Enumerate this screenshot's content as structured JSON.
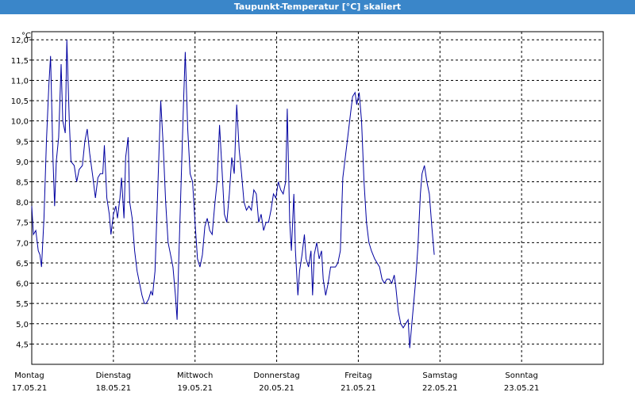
{
  "window": {
    "title": "Taupunkt-Temperatur [°C] skaliert"
  },
  "chart_data": {
    "type": "line",
    "title": "Taupunkt-Temperatur [°C] skaliert",
    "ylabel": "°C",
    "xlabel": "",
    "ylim": [
      4.0,
      12.2
    ],
    "xlim": [
      0,
      7
    ],
    "y_ticks": [
      "12,0",
      "11,5",
      "11,0",
      "10,5",
      "10,0",
      "9,5",
      "9,0",
      "8,5",
      "8,0",
      "7,5",
      "7,0",
      "6,5",
      "6,0",
      "5,5",
      "5,0",
      "4,5"
    ],
    "y_tick_values": [
      12.0,
      11.5,
      11.0,
      10.5,
      10.0,
      9.5,
      9.0,
      8.5,
      8.0,
      7.5,
      7.0,
      6.5,
      6.0,
      5.5,
      5.0,
      4.5
    ],
    "x_tick_labels": [
      {
        "day": "Montag",
        "date": "17.05.21"
      },
      {
        "day": "Dienstag",
        "date": "18.05.21"
      },
      {
        "day": "Mittwoch",
        "date": "19.05.21"
      },
      {
        "day": "Donnerstag",
        "date": "20.05.21"
      },
      {
        "day": "Freitag",
        "date": "21.05.21"
      },
      {
        "day": "Samstag",
        "date": "22.05.21"
      },
      {
        "day": "Sonntag",
        "date": "23.05.21"
      }
    ],
    "grid": true,
    "series": [
      {
        "color": "#0000a0",
        "points": [
          [
            0.0,
            7.9
          ],
          [
            0.02,
            7.2
          ],
          [
            0.05,
            7.3
          ],
          [
            0.08,
            6.8
          ],
          [
            0.1,
            6.7
          ],
          [
            0.12,
            6.4
          ],
          [
            0.15,
            7.6
          ],
          [
            0.18,
            9.5
          ],
          [
            0.21,
            10.9
          ],
          [
            0.23,
            11.6
          ],
          [
            0.26,
            9.1
          ],
          [
            0.28,
            7.9
          ],
          [
            0.3,
            9.0
          ],
          [
            0.33,
            9.6
          ],
          [
            0.36,
            11.4
          ],
          [
            0.38,
            10.0
          ],
          [
            0.41,
            9.7
          ],
          [
            0.43,
            12.0
          ],
          [
            0.46,
            10.0
          ],
          [
            0.48,
            9.0
          ],
          [
            0.52,
            8.9
          ],
          [
            0.55,
            8.5
          ],
          [
            0.58,
            8.8
          ],
          [
            0.62,
            8.9
          ],
          [
            0.65,
            9.5
          ],
          [
            0.68,
            9.8
          ],
          [
            0.71,
            9.2
          ],
          [
            0.75,
            8.6
          ],
          [
            0.78,
            8.1
          ],
          [
            0.81,
            8.6
          ],
          [
            0.84,
            8.7
          ],
          [
            0.87,
            8.7
          ],
          [
            0.89,
            9.4
          ],
          [
            0.92,
            8.1
          ],
          [
            0.95,
            7.7
          ],
          [
            0.97,
            7.2
          ],
          [
            1.0,
            7.7
          ],
          [
            1.03,
            7.9
          ],
          [
            1.05,
            7.6
          ],
          [
            1.08,
            8.1
          ],
          [
            1.1,
            8.6
          ],
          [
            1.13,
            7.6
          ],
          [
            1.15,
            9.1
          ],
          [
            1.18,
            9.6
          ],
          [
            1.2,
            8.0
          ],
          [
            1.23,
            7.6
          ],
          [
            1.26,
            6.8
          ],
          [
            1.29,
            6.3
          ],
          [
            1.32,
            6.0
          ],
          [
            1.35,
            5.7
          ],
          [
            1.38,
            5.5
          ],
          [
            1.4,
            5.5
          ],
          [
            1.43,
            5.6
          ],
          [
            1.46,
            5.8
          ],
          [
            1.48,
            5.7
          ],
          [
            1.51,
            6.3
          ],
          [
            1.55,
            8.7
          ],
          [
            1.58,
            10.5
          ],
          [
            1.61,
            9.4
          ],
          [
            1.64,
            8.0
          ],
          [
            1.67,
            7.0
          ],
          [
            1.7,
            6.7
          ],
          [
            1.73,
            6.4
          ],
          [
            1.76,
            5.7
          ],
          [
            1.78,
            5.1
          ],
          [
            1.8,
            6.5
          ],
          [
            1.83,
            8.5
          ],
          [
            1.86,
            10.5
          ],
          [
            1.88,
            11.7
          ],
          [
            1.91,
            9.8
          ],
          [
            1.94,
            8.7
          ],
          [
            1.97,
            8.5
          ],
          [
            2.0,
            7.5
          ],
          [
            2.03,
            6.6
          ],
          [
            2.06,
            6.4
          ],
          [
            2.09,
            6.7
          ],
          [
            2.12,
            7.4
          ],
          [
            2.15,
            7.6
          ],
          [
            2.18,
            7.3
          ],
          [
            2.21,
            7.2
          ],
          [
            2.24,
            7.9
          ],
          [
            2.27,
            8.5
          ],
          [
            2.3,
            9.9
          ],
          [
            2.33,
            8.8
          ],
          [
            2.36,
            7.7
          ],
          [
            2.39,
            7.5
          ],
          [
            2.42,
            8.2
          ],
          [
            2.45,
            9.1
          ],
          [
            2.48,
            8.7
          ],
          [
            2.51,
            10.4
          ],
          [
            2.54,
            9.3
          ],
          [
            2.57,
            8.7
          ],
          [
            2.6,
            8.0
          ],
          [
            2.63,
            7.8
          ],
          [
            2.66,
            7.9
          ],
          [
            2.69,
            7.8
          ],
          [
            2.72,
            8.3
          ],
          [
            2.75,
            8.2
          ],
          [
            2.78,
            7.5
          ],
          [
            2.81,
            7.7
          ],
          [
            2.84,
            7.3
          ],
          [
            2.87,
            7.5
          ],
          [
            2.9,
            7.5
          ],
          [
            2.93,
            7.8
          ],
          [
            2.96,
            8.2
          ],
          [
            2.99,
            8.1
          ],
          [
            3.02,
            8.5
          ],
          [
            3.05,
            8.3
          ],
          [
            3.08,
            8.2
          ],
          [
            3.11,
            8.5
          ],
          [
            3.13,
            10.3
          ],
          [
            3.16,
            7.5
          ],
          [
            3.18,
            6.8
          ],
          [
            3.21,
            8.2
          ],
          [
            3.23,
            6.8
          ],
          [
            3.26,
            5.7
          ],
          [
            3.28,
            6.3
          ],
          [
            3.31,
            6.7
          ],
          [
            3.34,
            7.2
          ],
          [
            3.36,
            6.6
          ],
          [
            3.39,
            6.4
          ],
          [
            3.42,
            6.8
          ],
          [
            3.44,
            5.7
          ],
          [
            3.46,
            6.7
          ],
          [
            3.49,
            7.0
          ],
          [
            3.52,
            6.6
          ],
          [
            3.55,
            6.8
          ],
          [
            3.57,
            6.1
          ],
          [
            3.6,
            5.7
          ],
          [
            3.63,
            6.0
          ],
          [
            3.66,
            6.4
          ],
          [
            3.69,
            6.4
          ],
          [
            3.72,
            6.4
          ],
          [
            3.75,
            6.5
          ],
          [
            3.78,
            6.8
          ],
          [
            3.81,
            8.6
          ],
          [
            3.84,
            9.1
          ],
          [
            3.87,
            9.6
          ],
          [
            3.9,
            10.1
          ],
          [
            3.93,
            10.6
          ],
          [
            3.96,
            10.7
          ],
          [
            3.98,
            10.4
          ],
          [
            4.01,
            10.7
          ],
          [
            4.04,
            10.0
          ],
          [
            4.07,
            8.5
          ],
          [
            4.1,
            7.5
          ],
          [
            4.13,
            7.0
          ],
          [
            4.16,
            6.8
          ],
          [
            4.2,
            6.6
          ],
          [
            4.23,
            6.5
          ],
          [
            4.26,
            6.4
          ],
          [
            4.29,
            6.1
          ],
          [
            4.32,
            6.0
          ],
          [
            4.35,
            6.1
          ],
          [
            4.38,
            6.1
          ],
          [
            4.41,
            6.0
          ],
          [
            4.44,
            6.2
          ],
          [
            4.46,
            5.9
          ],
          [
            4.49,
            5.3
          ],
          [
            4.52,
            5.0
          ],
          [
            4.55,
            4.9
          ],
          [
            4.58,
            5.0
          ],
          [
            4.61,
            5.1
          ],
          [
            4.63,
            4.4
          ],
          [
            4.66,
            5.1
          ],
          [
            4.7,
            6.0
          ],
          [
            4.73,
            6.9
          ],
          [
            4.76,
            8.2
          ],
          [
            4.78,
            8.7
          ],
          [
            4.81,
            8.9
          ],
          [
            4.84,
            8.5
          ],
          [
            4.87,
            8.2
          ],
          [
            4.9,
            7.4
          ],
          [
            4.93,
            6.7
          ]
        ]
      }
    ]
  }
}
